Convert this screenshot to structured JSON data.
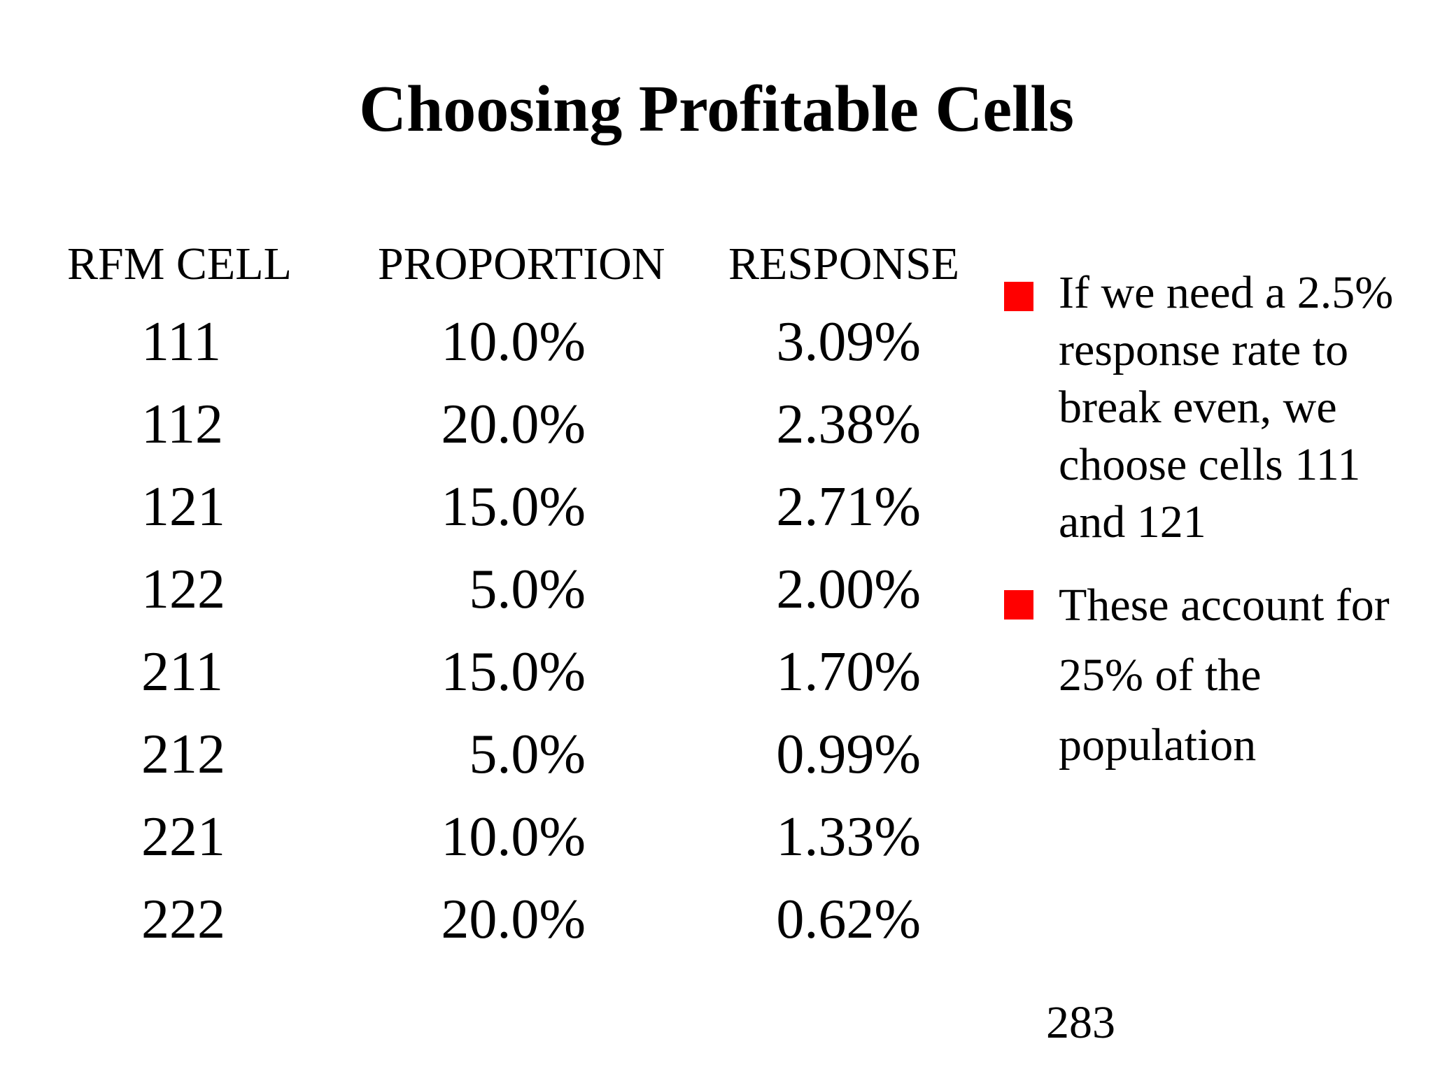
{
  "slide": {
    "title": "Choosing Profitable Cells",
    "page_number": "283"
  },
  "table": {
    "headers": {
      "cell": "RFM CELL",
      "proportion": "PROPORTION",
      "response": "RESPONSE"
    },
    "rows": [
      {
        "cell": "111",
        "proportion": "10.0%",
        "response": "3.09%"
      },
      {
        "cell": "112",
        "proportion": "20.0%",
        "response": "2.38%"
      },
      {
        "cell": "121",
        "proportion": "15.0%",
        "response": "2.71%"
      },
      {
        "cell": "122",
        "proportion": "5.0%",
        "response": "2.00%"
      },
      {
        "cell": "211",
        "proportion": "15.0%",
        "response": "1.70%"
      },
      {
        "cell": "212",
        "proportion": "5.0%",
        "response": "0.99%"
      },
      {
        "cell": "221",
        "proportion": "10.0%",
        "response": "1.33%"
      },
      {
        "cell": "222",
        "proportion": "20.0%",
        "response": "0.62%"
      }
    ]
  },
  "bullets": [
    {
      "text": "If we need a 2.5% response rate to break even, we choose cells 111 and 121"
    },
    {
      "text": "These account for 25% of the population"
    }
  ],
  "colors": {
    "bullet_marker": "#ff0000",
    "text": "#000000",
    "background": "#ffffff"
  }
}
